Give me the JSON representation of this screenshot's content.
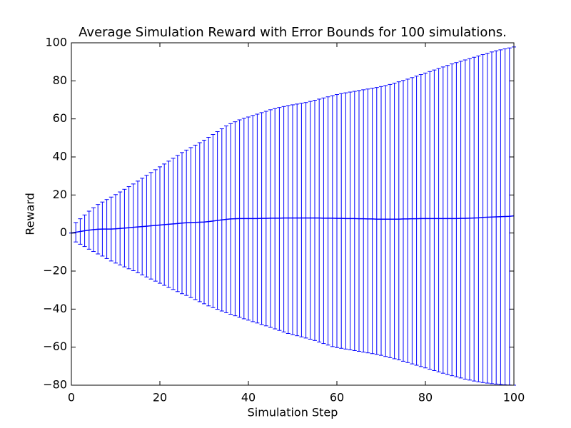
{
  "chart_data": {
    "type": "line",
    "title": "Average Simulation Reward with Error Bounds for 100 simulations.",
    "xlabel": "Simulation Step",
    "ylabel": "Reward",
    "xlim": [
      0,
      100
    ],
    "ylim": [
      -80,
      100
    ],
    "x_ticks": [
      0,
      20,
      40,
      60,
      80,
      100
    ],
    "y_ticks": [
      -80,
      -60,
      -40,
      -20,
      0,
      20,
      40,
      60,
      80,
      100
    ],
    "grid": false,
    "legend": "none",
    "colors": {
      "series": "#0000ff",
      "axes": "#000000"
    },
    "series": [
      {
        "x": [
          0,
          1,
          2,
          3,
          4,
          5,
          6,
          7,
          8,
          9,
          10,
          11,
          12,
          13,
          14,
          15,
          16,
          17,
          18,
          19,
          20,
          21,
          22,
          23,
          24,
          25,
          26,
          27,
          28,
          29,
          30,
          31,
          32,
          33,
          34,
          35,
          36,
          37,
          38,
          39,
          40,
          41,
          42,
          43,
          44,
          45,
          46,
          47,
          48,
          49,
          50,
          51,
          52,
          53,
          54,
          55,
          56,
          57,
          58,
          59,
          60,
          61,
          62,
          63,
          64,
          65,
          66,
          67,
          68,
          69,
          70,
          71,
          72,
          73,
          74,
          75,
          76,
          77,
          78,
          79,
          80,
          81,
          82,
          83,
          84,
          85,
          86,
          87,
          88,
          89,
          90,
          91,
          92,
          93,
          94,
          95,
          96,
          97,
          98,
          99,
          100
        ],
        "y": [
          0.0,
          0.4,
          0.8,
          1.2,
          1.5,
          1.8,
          2.0,
          2.1,
          2.1,
          2.1,
          2.2,
          2.4,
          2.6,
          2.8,
          3.0,
          3.2,
          3.4,
          3.6,
          3.8,
          4.0,
          4.2,
          4.4,
          4.6,
          4.8,
          5.0,
          5.2,
          5.4,
          5.5,
          5.6,
          5.7,
          5.8,
          6.0,
          6.3,
          6.6,
          6.9,
          7.2,
          7.4,
          7.5,
          7.6,
          7.6,
          7.6,
          7.6,
          7.6,
          7.7,
          7.7,
          7.8,
          7.8,
          7.8,
          7.9,
          7.9,
          7.9,
          7.9,
          7.9,
          7.9,
          7.9,
          7.9,
          7.9,
          7.8,
          7.8,
          7.8,
          7.7,
          7.7,
          7.6,
          7.6,
          7.6,
          7.5,
          7.5,
          7.4,
          7.4,
          7.3,
          7.3,
          7.3,
          7.3,
          7.3,
          7.3,
          7.4,
          7.4,
          7.5,
          7.5,
          7.6,
          7.6,
          7.6,
          7.6,
          7.6,
          7.6,
          7.6,
          7.6,
          7.6,
          7.7,
          7.7,
          7.8,
          7.9,
          8.0,
          8.2,
          8.3,
          8.4,
          8.5,
          8.6,
          8.7,
          8.8,
          9.0
        ],
        "upper": [
          0.0,
          5.5,
          7.5,
          9.5,
          11.5,
          13.3,
          15.0,
          16.3,
          17.6,
          18.9,
          20.2,
          21.6,
          23.0,
          24.4,
          25.8,
          27.3,
          28.8,
          30.3,
          31.8,
          33.3,
          34.8,
          36.3,
          37.8,
          39.3,
          40.8,
          42.3,
          43.6,
          44.9,
          46.2,
          47.5,
          48.8,
          50.3,
          51.8,
          53.3,
          54.8,
          56.3,
          57.5,
          58.5,
          59.5,
          60.3,
          61.0,
          61.8,
          62.5,
          63.3,
          64.0,
          64.8,
          65.4,
          66.0,
          66.5,
          67.0,
          67.4,
          67.8,
          68.2,
          68.6,
          69.2,
          69.8,
          70.4,
          71.0,
          71.6,
          72.2,
          72.8,
          73.3,
          73.7,
          74.1,
          74.5,
          74.9,
          75.3,
          75.7,
          76.1,
          76.5,
          77.0,
          77.5,
          78.1,
          78.8,
          79.5,
          80.2,
          80.9,
          81.7,
          82.5,
          83.3,
          84.1,
          84.9,
          85.7,
          86.5,
          87.3,
          88.1,
          88.9,
          89.6,
          90.3,
          91.0,
          91.7,
          92.4,
          93.1,
          93.8,
          94.5,
          95.2,
          95.8,
          96.3,
          96.8,
          97.3,
          97.8
        ],
        "lower": [
          0.0,
          -4.7,
          -5.9,
          -7.1,
          -8.5,
          -9.7,
          -11.0,
          -12.1,
          -13.4,
          -14.7,
          -15.8,
          -16.8,
          -17.8,
          -18.8,
          -19.8,
          -20.9,
          -22.0,
          -23.1,
          -24.2,
          -25.3,
          -26.4,
          -27.5,
          -28.6,
          -29.7,
          -30.8,
          -31.9,
          -32.8,
          -33.9,
          -35.0,
          -36.1,
          -37.2,
          -38.3,
          -39.2,
          -40.1,
          -41.0,
          -41.9,
          -42.7,
          -43.5,
          -44.3,
          -45.1,
          -45.8,
          -46.6,
          -47.3,
          -48.1,
          -48.8,
          -49.6,
          -50.4,
          -51.2,
          -52.0,
          -52.8,
          -53.4,
          -54.0,
          -54.6,
          -55.2,
          -55.8,
          -56.5,
          -57.3,
          -58.1,
          -58.9,
          -59.7,
          -60.2,
          -60.6,
          -61.0,
          -61.4,
          -61.8,
          -62.2,
          -62.6,
          -63.0,
          -63.4,
          -63.8,
          -64.3,
          -64.9,
          -65.5,
          -66.1,
          -66.7,
          -67.4,
          -68.1,
          -68.8,
          -69.5,
          -70.2,
          -70.9,
          -71.6,
          -72.3,
          -73.0,
          -73.7,
          -74.4,
          -75.0,
          -75.6,
          -76.2,
          -76.8,
          -77.3,
          -77.8,
          -78.2,
          -78.6,
          -78.9,
          -79.2,
          -79.4,
          -79.6,
          -79.8,
          -79.9,
          -80.0
        ]
      }
    ]
  }
}
